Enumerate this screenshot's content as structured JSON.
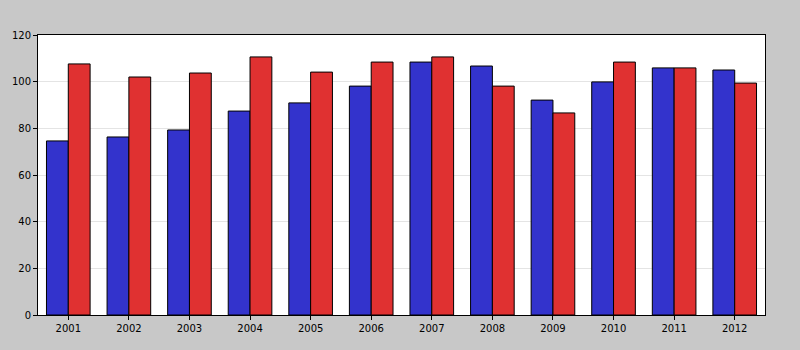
{
  "chart_data": {
    "type": "bar",
    "categories": [
      "2001",
      "2002",
      "2003",
      "2004",
      "2005",
      "2006",
      "2007",
      "2008",
      "2009",
      "2010",
      "2011",
      "2012"
    ],
    "series": [
      {
        "color": "#3333cc",
        "values": [
          74.6,
          76.3,
          79.3,
          87.4,
          90.9,
          98.1,
          108.4,
          106.7,
          92.1,
          99.9,
          105.9,
          105.0
        ]
      },
      {
        "color": "#e03131",
        "values": [
          107.6,
          102.0,
          103.7,
          110.6,
          104.1,
          108.4,
          110.6,
          98.1,
          86.6,
          108.4,
          105.9,
          99.4
        ]
      }
    ],
    "ylim": [
      0,
      120
    ],
    "yticks": [
      0,
      20,
      40,
      60,
      80,
      100,
      120
    ],
    "grid": true
  }
}
